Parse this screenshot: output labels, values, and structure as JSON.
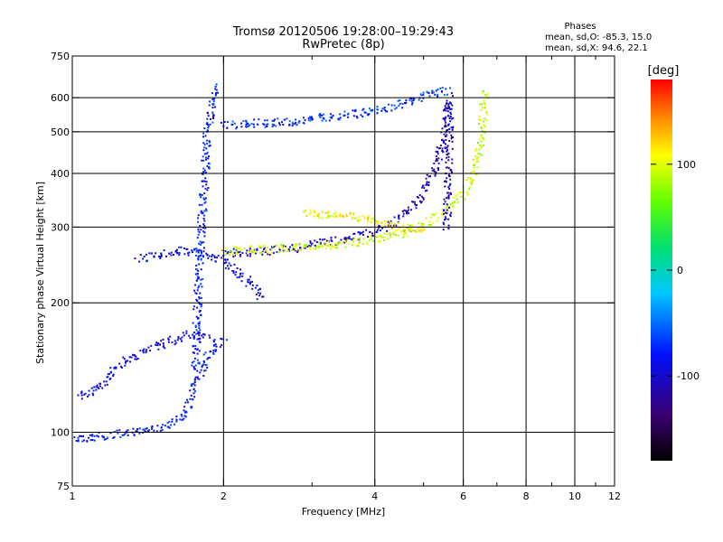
{
  "chart_data": {
    "type": "scatter",
    "title": "Tromsø 20120506 19:28:00–19:29:43",
    "subtitle": "RwPretec (8p)",
    "stats": {
      "heading": "Phases",
      "line1": "mean, sd,O: -85.3, 15.0",
      "line2": "mean, sd,X:  94.6, 22.1"
    },
    "xlabel": "Frequency [MHz]",
    "ylabel": "Stationary phase Virtual Height [km]",
    "x_scale": "log",
    "y_scale": "log",
    "xlim": [
      1,
      12
    ],
    "ylim": [
      75,
      750
    ],
    "x_ticks": [
      1,
      2,
      4,
      6,
      8,
      10,
      12
    ],
    "x_tick_labels": [
      "1",
      "2",
      "4",
      "6",
      "8",
      "10",
      "12"
    ],
    "x_minor_ticks": [
      3,
      5,
      7,
      9,
      11
    ],
    "y_ticks": [
      75,
      100,
      200,
      300,
      400,
      500,
      600,
      750
    ],
    "y_tick_labels": [
      "75",
      "100",
      "200",
      "300",
      "400",
      "500",
      "600",
      "750"
    ],
    "grid": true,
    "colorbar": {
      "label": "[deg]",
      "range": [
        -180,
        180
      ],
      "ticks": [
        100,
        0,
        -100
      ],
      "tick_labels": [
        "100",
        "0",
        "-100"
      ]
    },
    "traces": [
      {
        "x": [
          1.0,
          1.1,
          1.2,
          1.3,
          1.4,
          1.55,
          1.65,
          1.75,
          1.85,
          1.95,
          2.0
        ],
        "y": [
          97,
          98,
          99,
          100,
          102,
          105,
          108,
          130,
          150,
          160,
          165
        ],
        "phase": -80
      },
      {
        "x": [
          1.02,
          1.1,
          1.2,
          1.3,
          1.4,
          1.5,
          1.6,
          1.7,
          1.8,
          1.9
        ],
        "y": [
          122,
          125,
          140,
          150,
          155,
          160,
          165,
          170,
          168,
          165
        ],
        "phase": -95
      },
      {
        "x": [
          1.35,
          1.45,
          1.55,
          1.65,
          1.75,
          1.85,
          1.95,
          2.05,
          2.2,
          2.4
        ],
        "y": [
          255,
          258,
          262,
          265,
          262,
          258,
          255,
          245,
          230,
          205
        ],
        "phase": -92
      },
      {
        "x": [
          1.75,
          1.77,
          1.8,
          1.83,
          1.85,
          1.88,
          1.9,
          1.95
        ],
        "y": [
          140,
          200,
          300,
          400,
          500,
          560,
          600,
          640
        ],
        "phase": -78
      },
      {
        "x": [
          2.0,
          2.3,
          2.7,
          3.1,
          3.5,
          3.9,
          4.3,
          4.7,
          5.0,
          5.3,
          5.6
        ],
        "y": [
          520,
          525,
          530,
          540,
          550,
          560,
          575,
          590,
          610,
          620,
          630
        ],
        "phase": -72
      },
      {
        "x": [
          2.0,
          2.4,
          2.8,
          3.2,
          3.6,
          4.0,
          4.4,
          4.8,
          5.2,
          5.5,
          5.6
        ],
        "y": [
          262,
          265,
          270,
          278,
          285,
          295,
          310,
          340,
          400,
          500,
          600
        ],
        "phase": -105
      },
      {
        "x": [
          2.0,
          2.5,
          3.0,
          3.5,
          4.0,
          4.5,
          5.0,
          5.5,
          6.0,
          6.3,
          6.5,
          6.6
        ],
        "y": [
          265,
          268,
          272,
          276,
          282,
          290,
          305,
          330,
          360,
          400,
          500,
          620
        ],
        "phase": 95
      },
      {
        "x": [
          2.9,
          3.2,
          3.6,
          4.0,
          4.3,
          4.6,
          5.0
        ],
        "y": [
          325,
          322,
          318,
          312,
          305,
          300,
          296
        ],
        "phase": 110
      },
      {
        "x": [
          5.55,
          5.57,
          5.6,
          5.62
        ],
        "y": [
          300,
          400,
          500,
          600
        ],
        "phase": -110
      }
    ]
  }
}
